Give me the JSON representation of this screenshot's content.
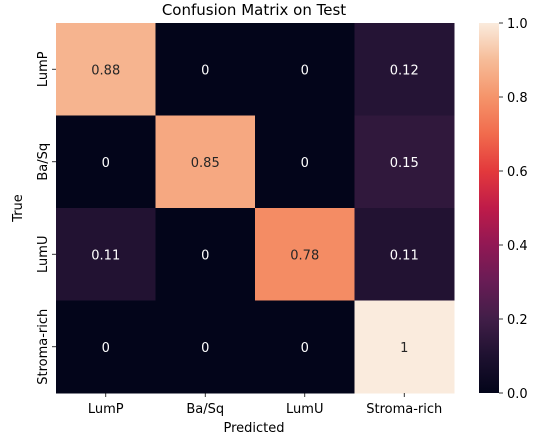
{
  "chart_data": {
    "type": "heatmap",
    "title": "Confusion Matrix on Test",
    "xlabel": "Predicted",
    "ylabel": "True",
    "x_categories": [
      "LumP",
      "Ba/Sq",
      "LumU",
      "Stroma-rich"
    ],
    "y_categories": [
      "LumP",
      "Ba/Sq",
      "LumU",
      "Stroma-rich"
    ],
    "values": [
      [
        0.88,
        0,
        0,
        0.12
      ],
      [
        0,
        0.85,
        0,
        0.15
      ],
      [
        0.11,
        0,
        0.78,
        0.11
      ],
      [
        0,
        0,
        0,
        1
      ]
    ],
    "value_labels": [
      [
        "0.88",
        "0",
        "0",
        "0.12"
      ],
      [
        "0",
        "0.85",
        "0",
        "0.15"
      ],
      [
        "0.11",
        "0",
        "0.78",
        "0.11"
      ],
      [
        "0",
        "0",
        "0",
        "1"
      ]
    ],
    "colormap": "rocket",
    "vmin": 0.0,
    "vmax": 1.0,
    "colorbar_ticks": [
      "0.0",
      "0.2",
      "0.4",
      "0.6",
      "0.8",
      "1.0"
    ]
  }
}
